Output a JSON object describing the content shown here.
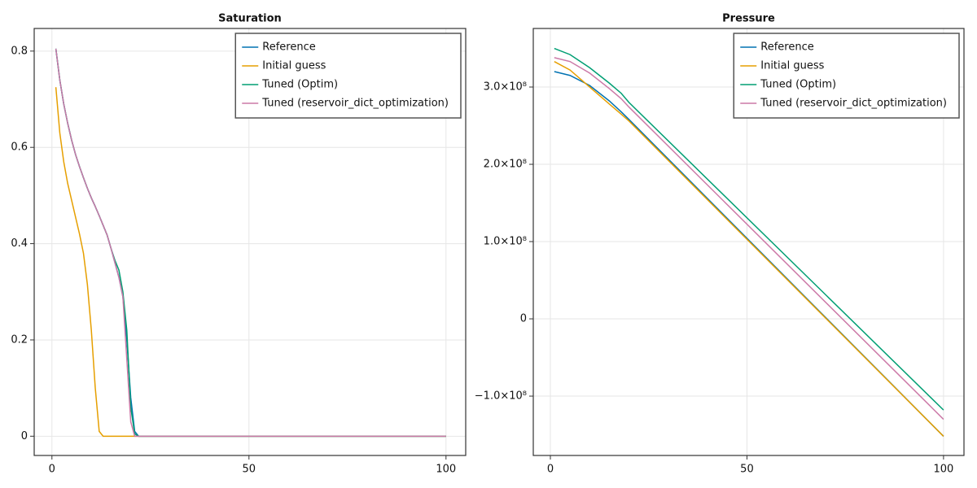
{
  "chart_data": [
    {
      "type": "line",
      "title": "Saturation",
      "x": [
        1,
        2,
        3,
        4,
        5,
        6,
        7,
        8,
        9,
        10,
        11,
        12,
        13,
        14,
        15,
        16,
        17,
        18,
        19,
        20,
        21,
        22,
        100
      ],
      "series": [
        {
          "name": "Reference",
          "color": "#0072b2",
          "values": [
            0.805,
            0.74,
            0.69,
            0.65,
            0.615,
            0.585,
            0.56,
            0.537,
            0.515,
            0.495,
            0.477,
            0.458,
            0.438,
            0.418,
            0.39,
            0.36,
            0.33,
            0.29,
            0.2,
            0.08,
            0.01,
            0,
            0
          ]
        },
        {
          "name": "Initial guess",
          "color": "#e69f00",
          "values": [
            0.725,
            0.63,
            0.57,
            0.525,
            0.49,
            0.455,
            0.42,
            0.38,
            0.315,
            0.22,
            0.1,
            0.01,
            0,
            0,
            0,
            0,
            0,
            0,
            0,
            0,
            0,
            0,
            0
          ]
        },
        {
          "name": "Tuned (Optim)",
          "color": "#009e73",
          "values": [
            0.805,
            0.74,
            0.69,
            0.65,
            0.615,
            0.585,
            0.56,
            0.537,
            0.515,
            0.495,
            0.477,
            0.458,
            0.438,
            0.418,
            0.39,
            0.365,
            0.345,
            0.3,
            0.22,
            0.06,
            0.005,
            0,
            0
          ]
        },
        {
          "name": "Tuned (reservoir_dict_optimization)",
          "color": "#cc79a7",
          "values": [
            0.805,
            0.74,
            0.69,
            0.65,
            0.615,
            0.585,
            0.56,
            0.537,
            0.515,
            0.495,
            0.477,
            0.458,
            0.438,
            0.418,
            0.39,
            0.36,
            0.33,
            0.29,
            0.16,
            0.03,
            0,
            0,
            0
          ]
        }
      ],
      "xlim": [
        -4.5,
        105
      ],
      "ylim": [
        -0.04,
        0.847
      ],
      "xticks": [
        0,
        50,
        100
      ],
      "yticks": [
        0.0,
        0.2,
        0.4,
        0.6,
        0.8
      ],
      "grid": true,
      "legend": "top-right"
    },
    {
      "type": "line",
      "title": "Pressure",
      "x": [
        1,
        5,
        10,
        15,
        18,
        20,
        100
      ],
      "series": [
        {
          "name": "Reference",
          "color": "#0072b2",
          "values": [
            320000000,
            315000000,
            302000000,
            282000000,
            268000000,
            258000000,
            -152000000
          ]
        },
        {
          "name": "Initial guess",
          "color": "#e69f00",
          "values": [
            333000000,
            322000000,
            300000000,
            278000000,
            265000000,
            256000000,
            -152000000
          ]
        },
        {
          "name": "Tuned (Optim)",
          "color": "#009e73",
          "values": [
            350000000,
            342000000,
            325000000,
            305000000,
            292000000,
            280000000,
            -118000000
          ]
        },
        {
          "name": "Tuned (reservoir_dict_optimization)",
          "color": "#cc79a7",
          "values": [
            338000000,
            333000000,
            318000000,
            298000000,
            285000000,
            274000000,
            -130000000
          ]
        }
      ],
      "xlim": [
        -4.35,
        105.2
      ],
      "ylim": [
        -176800000,
        375800000
      ],
      "xticks": [
        0,
        50,
        100
      ],
      "yticks": [
        {
          "value": -100000000,
          "label": "−1.0×10⁸"
        },
        0,
        {
          "value": 100000000,
          "label": "1.0×10⁸"
        },
        {
          "value": 200000000,
          "label": "2.0×10⁸"
        },
        {
          "value": 300000000,
          "label": "3.0×10⁸"
        }
      ],
      "grid": true,
      "legend": "top-right"
    }
  ]
}
